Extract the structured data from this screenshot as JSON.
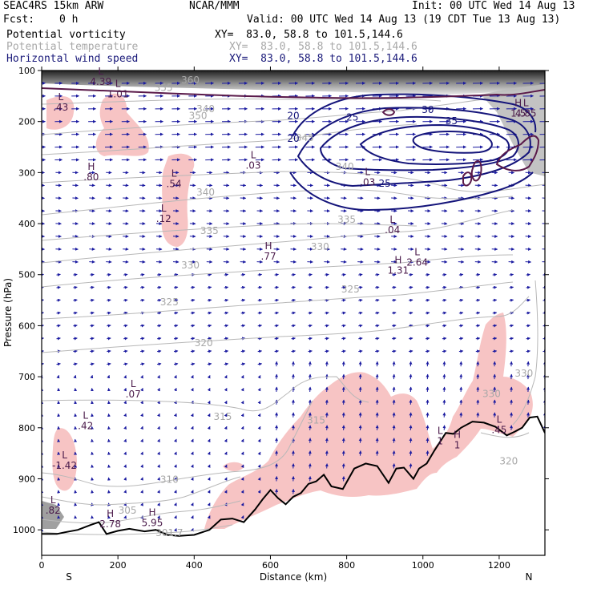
{
  "header": {
    "model": "SEAC4RS 15km ARW",
    "org": "NCAR/MMM",
    "init": "Init: 00 UTC Wed 14 Aug 13",
    "fcst_label": "Fcst:",
    "fcst_value": "0 h",
    "valid": "Valid: 00 UTC Wed 14 Aug 13 (19 CDT Tue 13 Aug 13)"
  },
  "fields": [
    {
      "name": "Potential vorticity",
      "xy": "XY=  83.0, 58.8 to 101.5,144.6",
      "color": "#000000"
    },
    {
      "name": "Potential temperature",
      "xy": "XY=  83.0, 58.8 to 101.5,144.6",
      "color": "#a8a8a8"
    },
    {
      "name": "Horizontal wind speed",
      "xy": "XY=  83.0, 58.8 to 101.5,144.6",
      "color": "#1a1a7a"
    }
  ],
  "chart_data": {
    "type": "cross-section",
    "xlabel": "Distance (km)",
    "ylabel": "Pressure (hPa)",
    "xlim": [
      0,
      1320
    ],
    "ylim": [
      1050,
      100
    ],
    "xticks": [
      0,
      200,
      400,
      600,
      800,
      1000,
      1200
    ],
    "yticks": [
      100,
      200,
      300,
      400,
      500,
      600,
      700,
      800,
      900,
      1000
    ],
    "x_end_labels": {
      "left": "S",
      "right": "N"
    },
    "colors": {
      "pv_fill": "#f7c4c4",
      "theta": "#b8b8b8",
      "wind": "#14147a",
      "wind_arrow": "#1a1aa0",
      "pv_line": "#5a1a4a",
      "terrain": "#000000"
    },
    "theta_labels": [
      {
        "text": "360",
        "x": 390,
        "p": 125
      },
      {
        "text": "355",
        "x": 320,
        "p": 140
      },
      {
        "text": "350",
        "x": 410,
        "p": 195
      },
      {
        "text": "340",
        "x": 430,
        "p": 182
      },
      {
        "text": "345",
        "x": 690,
        "p": 238
      },
      {
        "text": "340",
        "x": 430,
        "p": 345
      },
      {
        "text": "340",
        "x": 795,
        "p": 295
      },
      {
        "text": "335",
        "x": 800,
        "p": 398
      },
      {
        "text": "335",
        "x": 440,
        "p": 420
      },
      {
        "text": "330",
        "x": 730,
        "p": 452
      },
      {
        "text": "330",
        "x": 390,
        "p": 488
      },
      {
        "text": "325",
        "x": 335,
        "p": 560
      },
      {
        "text": "325",
        "x": 810,
        "p": 535
      },
      {
        "text": "320",
        "x": 425,
        "p": 640
      },
      {
        "text": "315",
        "x": 475,
        "p": 785
      },
      {
        "text": "315",
        "x": 720,
        "p": 792
      },
      {
        "text": "310",
        "x": 335,
        "p": 908
      },
      {
        "text": "305",
        "x": 225,
        "p": 968
      },
      {
        "text": "301.7",
        "x": 335,
        "p": 1012
      },
      {
        "text": "320",
        "x": 1225,
        "p": 872
      },
      {
        "text": "330",
        "x": 1180,
        "p": 740
      },
      {
        "text": "330",
        "x": 1265,
        "p": 700
      }
    ],
    "wind_labels": [
      {
        "text": "30",
        "x": 1013,
        "p": 183
      },
      {
        "text": "35",
        "x": 1075,
        "p": 205
      },
      {
        "text": "25",
        "x": 815,
        "p": 198
      },
      {
        "text": "20",
        "x": 660,
        "p": 195
      },
      {
        "text": "20",
        "x": 660,
        "p": 240
      },
      {
        "text": "25",
        "x": 900,
        "p": 328
      }
    ],
    "extrema": [
      {
        "type": "L",
        "value": "4.39",
        "x": 155,
        "p": 108
      },
      {
        "type": "L",
        "value": "1.01",
        "x": 200,
        "p": 132
      },
      {
        "type": "L",
        "value": ".43",
        "x": 50,
        "p": 158
      },
      {
        "type": "H",
        "value": ".80",
        "x": 130,
        "p": 295
      },
      {
        "type": "L",
        "value": ".54",
        "x": 347,
        "p": 308
      },
      {
        "type": "L",
        "value": ".12",
        "x": 320,
        "p": 376
      },
      {
        "type": "L",
        "value": ".03",
        "x": 555,
        "p": 272
      },
      {
        "type": "L",
        "value": ".03",
        "x": 855,
        "p": 305
      },
      {
        "type": "L",
        "value": ".04",
        "x": 920,
        "p": 398
      },
      {
        "type": "H",
        "value": ".77",
        "x": 595,
        "p": 450
      },
      {
        "type": "H",
        "value": "1.31",
        "x": 935,
        "p": 478
      },
      {
        "type": "L",
        "value": "2.64",
        "x": 985,
        "p": 462
      },
      {
        "type": "H",
        "value": "1.5",
        "x": 1250,
        "p": 170
      },
      {
        "type": "L",
        "value": "4.85",
        "x": 1270,
        "p": 170
      },
      {
        "type": "L",
        "value": ".07",
        "x": 240,
        "p": 720
      },
      {
        "type": "L",
        "value": ".42",
        "x": 115,
        "p": 782
      },
      {
        "type": "L",
        "value": "-1.42",
        "x": 60,
        "p": 860
      },
      {
        "type": "H",
        "value": "2.78",
        "x": 180,
        "p": 975
      },
      {
        "type": "H",
        "value": "5.95",
        "x": 290,
        "p": 972
      },
      {
        "type": "L",
        "value": ".82",
        "x": 30,
        "p": 948
      },
      {
        "type": "L",
        "value": ".45",
        "x": 1200,
        "p": 790
      },
      {
        "type": "L",
        "value": "1",
        "x": 1045,
        "p": 812
      },
      {
        "type": "H",
        "value": "1",
        "x": 1090,
        "p": 820
      }
    ],
    "terrain": [
      [
        0,
        1008
      ],
      [
        40,
        1008
      ],
      [
        60,
        1005
      ],
      [
        95,
        1000
      ],
      [
        130,
        990
      ],
      [
        150,
        985
      ],
      [
        170,
        1008
      ],
      [
        200,
        1002
      ],
      [
        230,
        998
      ],
      [
        270,
        1003
      ],
      [
        300,
        1000
      ],
      [
        330,
        1010
      ],
      [
        360,
        1012
      ],
      [
        400,
        1010
      ],
      [
        440,
        1000
      ],
      [
        470,
        980
      ],
      [
        500,
        978
      ],
      [
        530,
        985
      ],
      [
        560,
        960
      ],
      [
        580,
        940
      ],
      [
        600,
        922
      ],
      [
        620,
        938
      ],
      [
        640,
        950
      ],
      [
        660,
        935
      ],
      [
        680,
        928
      ],
      [
        700,
        910
      ],
      [
        720,
        905
      ],
      [
        740,
        892
      ],
      [
        760,
        915
      ],
      [
        790,
        920
      ],
      [
        820,
        880
      ],
      [
        850,
        870
      ],
      [
        880,
        875
      ],
      [
        910,
        908
      ],
      [
        930,
        880
      ],
      [
        950,
        878
      ],
      [
        975,
        900
      ],
      [
        990,
        880
      ],
      [
        1010,
        870
      ],
      [
        1030,
        845
      ],
      [
        1060,
        810
      ],
      [
        1080,
        812
      ],
      [
        1100,
        800
      ],
      [
        1130,
        788
      ],
      [
        1160,
        790
      ],
      [
        1190,
        798
      ],
      [
        1220,
        815
      ],
      [
        1240,
        808
      ],
      [
        1260,
        800
      ],
      [
        1280,
        780
      ],
      [
        1300,
        778
      ],
      [
        1320,
        810
      ]
    ]
  }
}
